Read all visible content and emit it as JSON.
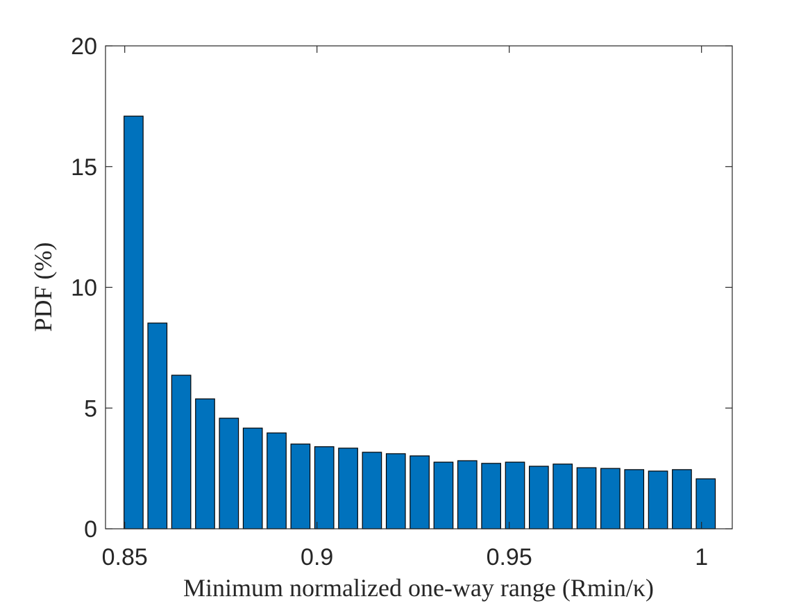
{
  "chart_data": {
    "type": "bar",
    "xlabel": "Minimum normalized one-way range (Rmin/κ)",
    "ylabel": "PDF (%)",
    "x": [
      0.8523,
      0.8585,
      0.8647,
      0.8709,
      0.8771,
      0.8833,
      0.8895,
      0.8957,
      0.9019,
      0.9081,
      0.9143,
      0.9205,
      0.9267,
      0.9329,
      0.9391,
      0.9453,
      0.9515,
      0.9577,
      0.9639,
      0.9701,
      0.9763,
      0.9825,
      0.9887,
      0.9949,
      1.0011
    ],
    "values": [
      17.09,
      8.52,
      6.36,
      5.38,
      4.58,
      4.17,
      3.97,
      3.51,
      3.4,
      3.34,
      3.17,
      3.11,
      3.02,
      2.76,
      2.82,
      2.71,
      2.76,
      2.59,
      2.68,
      2.53,
      2.5,
      2.45,
      2.39,
      2.45,
      2.07
    ],
    "color": "#0072bd",
    "xlim": [
      0.845,
      1.008
    ],
    "ylim": [
      0,
      20
    ],
    "xticks": [
      0.85,
      0.9,
      0.95,
      1
    ],
    "yticks": [
      0,
      5,
      10,
      15,
      20
    ],
    "grid": false
  }
}
